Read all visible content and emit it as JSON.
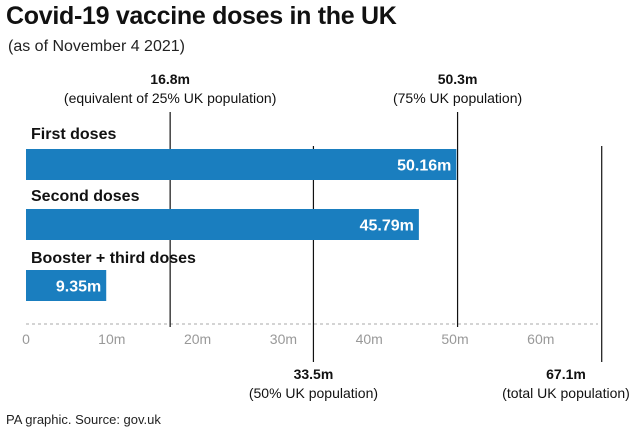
{
  "title": "Covid-19 vaccine doses in the UK",
  "subtitle": "(as of November 4 2021)",
  "source": "PA graphic. Source: gov.uk",
  "colors": {
    "bar": "#1a7ebf",
    "bar_label": "#ffffff",
    "reference_line": "#111111",
    "axis": "#aaaaaa",
    "tick_label": "#999999",
    "text": "#111111"
  },
  "chart_data": {
    "type": "bar",
    "orientation": "horizontal",
    "title": "Covid-19 vaccine doses in the UK",
    "subtitle": "(as of November 4 2021)",
    "categories": [
      "First doses",
      "Second doses",
      "Booster + third doses"
    ],
    "values": [
      50.16,
      45.79,
      9.35
    ],
    "value_labels": [
      "50.16m",
      "45.79m",
      "9.35m"
    ],
    "unit": "m",
    "xlim": [
      0,
      67.1
    ],
    "ticks": [
      0,
      10,
      20,
      30,
      40,
      50,
      60
    ],
    "tick_labels": [
      "0",
      "10m",
      "20m",
      "30m",
      "40m",
      "50m",
      "60m"
    ],
    "reference_lines": [
      {
        "value": 16.8,
        "label": "16.8m",
        "sublabel": "(equivalent of 25% UK population)",
        "position": "top"
      },
      {
        "value": 50.3,
        "label": "50.3m",
        "sublabel": "(75% UK population)",
        "position": "top"
      },
      {
        "value": 33.5,
        "label": "33.5m",
        "sublabel": "(50% UK population)",
        "position": "bottom"
      },
      {
        "value": 67.1,
        "label": "67.1m",
        "sublabel": "(total UK population)",
        "position": "bottom"
      }
    ],
    "grid": false,
    "legend": "none"
  }
}
